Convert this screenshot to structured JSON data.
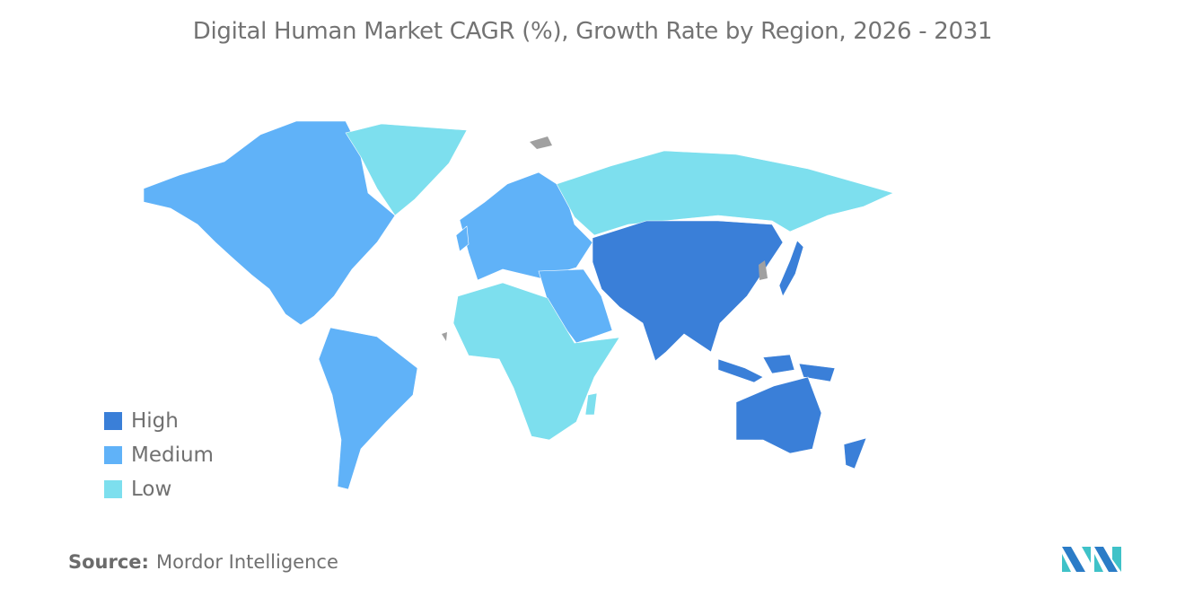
{
  "title": "Digital Human Market CAGR (%), Growth Rate by Region, 2026 - 2031",
  "legend": [
    {
      "label": "High",
      "color": "#3a7fd8"
    },
    {
      "label": "Medium",
      "color": "#60b2f8"
    },
    {
      "label": "Low",
      "color": "#7ddfee"
    }
  ],
  "no_data_color": "#a0a0a0",
  "regions": {
    "north_america": "Medium",
    "south_america": "Medium",
    "europe": "Medium",
    "middle_east": "Medium",
    "greenland": "Low",
    "russia": "Low",
    "africa": "Low",
    "asia_pacific": "High"
  },
  "source": {
    "label": "Source:",
    "value": "Mordor Intelligence"
  },
  "logo_text": "Mordor Intelligence"
}
